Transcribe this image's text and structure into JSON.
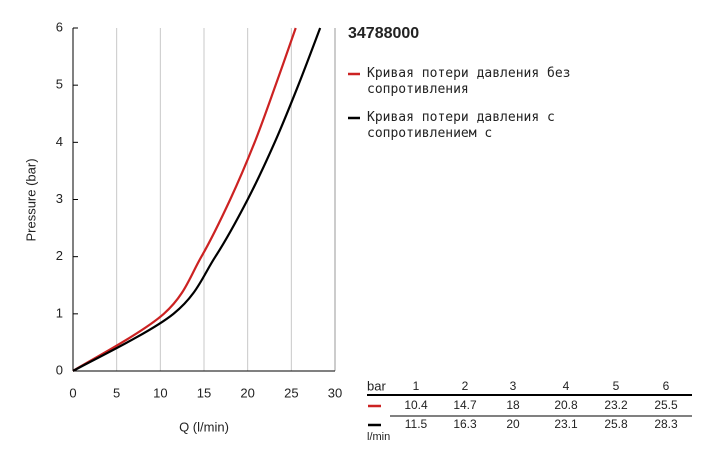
{
  "chart_data": {
    "type": "line",
    "title": "34788000",
    "x_label": "Q (l/min)",
    "y_label": "Pressure (bar)",
    "xlim": [
      0,
      30
    ],
    "xticks": [
      0,
      5,
      10,
      15,
      20,
      25,
      30
    ],
    "ylim": [
      0,
      6
    ],
    "yticks": [
      0,
      1,
      2,
      3,
      4,
      5,
      6
    ],
    "grid": "x",
    "series": [
      {
        "name": "Кривая потери давления без сопротивления",
        "color": "#cc2222",
        "x": [
          0,
          10.4,
          14.7,
          18.0,
          20.8,
          23.2,
          25.5
        ],
        "values": [
          0,
          1,
          2,
          3,
          4,
          5,
          6
        ]
      },
      {
        "name": "Кривая потери давления с сопротивлением с",
        "color": "#000000",
        "x": [
          0,
          11.5,
          16.3,
          20.0,
          23.1,
          25.8,
          28.3
        ],
        "values": [
          0,
          1,
          2,
          3,
          4,
          5,
          6
        ]
      }
    ]
  },
  "table": {
    "pressure_unit": "bar",
    "flow_unit": "l/min"
  }
}
